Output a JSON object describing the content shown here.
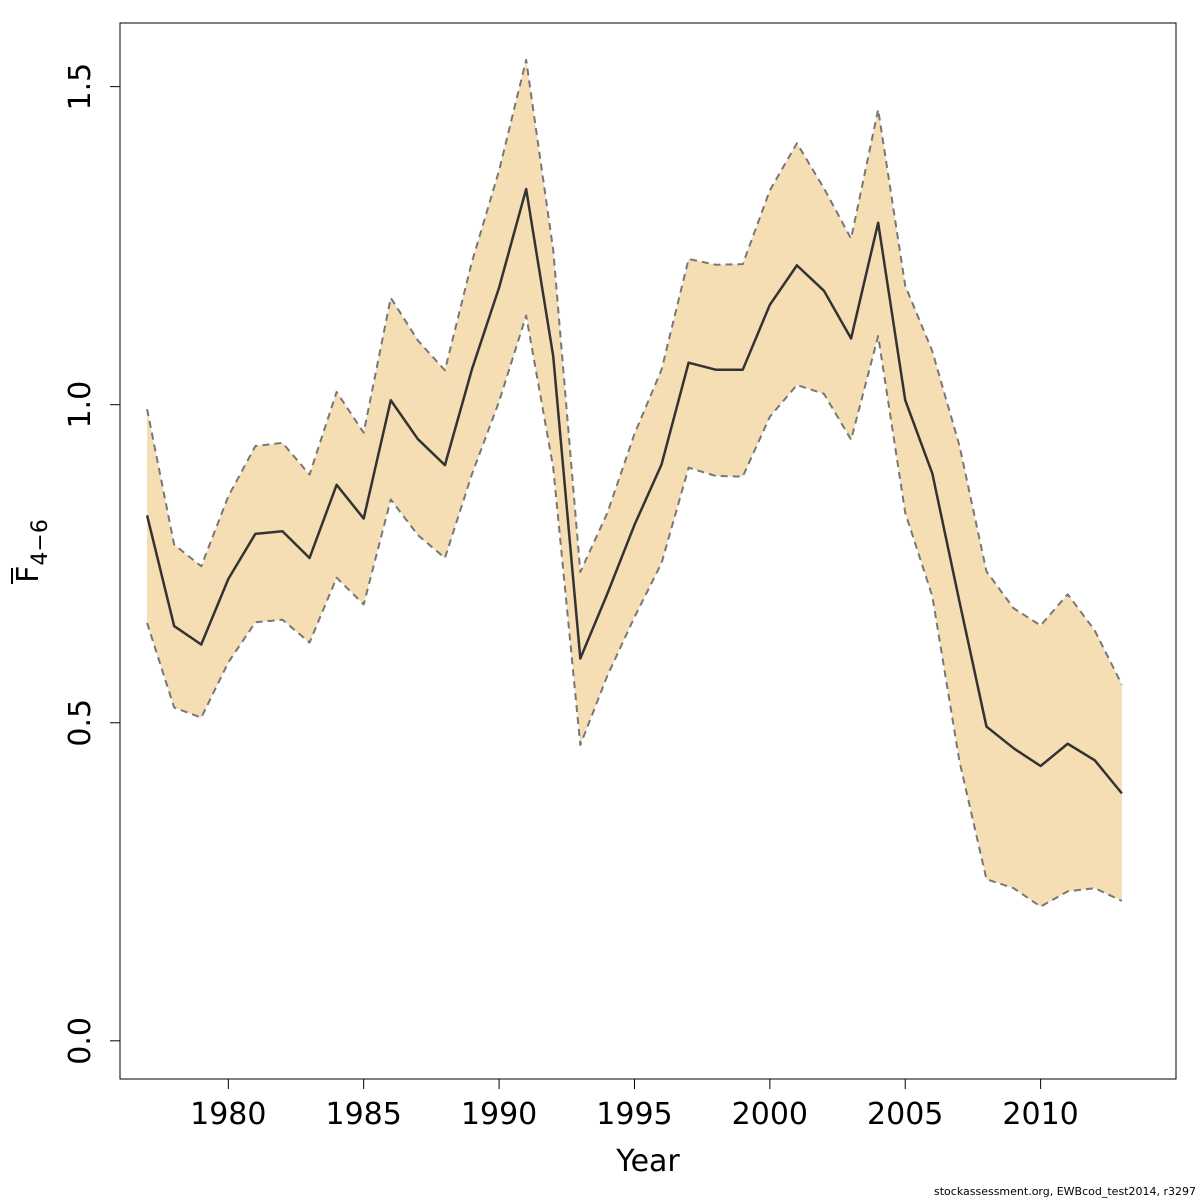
{
  "chart_data": {
    "type": "area",
    "xlabel": "Year",
    "ylabel": {
      "main": "F",
      "subscript": "4−6"
    },
    "xlim": [
      1976,
      2015
    ],
    "ylim": [
      -0.06,
      1.6
    ],
    "xticks": [
      1980,
      1985,
      1990,
      1995,
      2000,
      2005,
      2010
    ],
    "yticks": [
      0.0,
      0.5,
      1.0,
      1.5
    ],
    "ytick_labels": [
      "0.0",
      "0.5",
      "1.0",
      "1.5"
    ],
    "grid": false,
    "colors": {
      "band": "#f5deb3",
      "line": "#333333",
      "bound": "#777777"
    },
    "x": [
      1977,
      1978,
      1979,
      1980,
      1981,
      1982,
      1983,
      1984,
      1985,
      1986,
      1987,
      1988,
      1989,
      1990,
      1991,
      1992,
      1993,
      1994,
      1995,
      1996,
      1997,
      1998,
      1999,
      2000,
      2001,
      2002,
      2003,
      2004,
      2005,
      2006,
      2007,
      2008,
      2009,
      2010,
      2011,
      2012,
      2013
    ],
    "series": [
      {
        "role": "estimate",
        "values": [
          0.826,
          0.652,
          0.623,
          0.726,
          0.797,
          0.801,
          0.759,
          0.874,
          0.821,
          1.007,
          0.946,
          0.905,
          1.056,
          1.184,
          1.339,
          1.076,
          0.601,
          0.703,
          0.811,
          0.906,
          1.066,
          1.055,
          1.055,
          1.157,
          1.219,
          1.179,
          1.104,
          1.286,
          1.007,
          0.892,
          0.691,
          0.494,
          0.46,
          0.432,
          0.467,
          0.441,
          0.389
        ]
      },
      {
        "role": "upper",
        "values": [
          0.993,
          0.78,
          0.746,
          0.856,
          0.935,
          0.94,
          0.89,
          1.02,
          0.956,
          1.168,
          1.101,
          1.054,
          1.225,
          1.368,
          1.542,
          1.243,
          0.737,
          0.83,
          0.954,
          1.055,
          1.229,
          1.22,
          1.221,
          1.337,
          1.411,
          1.34,
          1.261,
          1.464,
          1.187,
          1.084,
          0.936,
          0.738,
          0.68,
          0.653,
          0.702,
          0.645,
          0.56
        ]
      },
      {
        "role": "lower",
        "values": [
          0.657,
          0.524,
          0.508,
          0.595,
          0.658,
          0.662,
          0.626,
          0.728,
          0.686,
          0.851,
          0.795,
          0.759,
          0.891,
          1.005,
          1.14,
          0.901,
          0.465,
          0.574,
          0.666,
          0.751,
          0.901,
          0.888,
          0.887,
          0.981,
          1.031,
          1.017,
          0.945,
          1.108,
          0.83,
          0.699,
          0.44,
          0.254,
          0.24,
          0.211,
          0.235,
          0.24,
          0.22
        ]
      }
    ]
  },
  "footer": "stockassessment.org, EWBcod_test2014, r3297"
}
